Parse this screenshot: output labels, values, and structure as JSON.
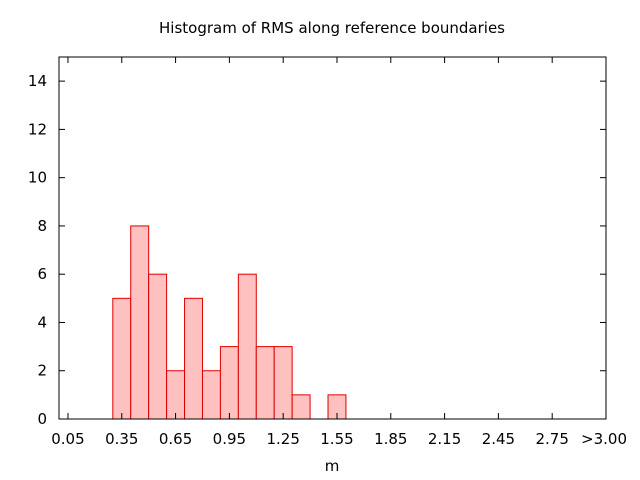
{
  "chart_data": {
    "type": "bar",
    "title": "Histogram of RMS along reference boundaries",
    "xlabel": "m",
    "ylabel": "",
    "ylim": [
      0,
      15
    ],
    "yticks": [
      0,
      2,
      4,
      6,
      8,
      10,
      12,
      14
    ],
    "x_tick_labels": [
      "0.05",
      "0.35",
      "0.65",
      "0.95",
      "1.25",
      "1.55",
      "1.85",
      "2.15",
      "2.45",
      "2.75",
      ">3.00"
    ],
    "bin_width": 0.1,
    "x_range": [
      0.0,
      3.05
    ],
    "bin_centers": [
      0.35,
      0.45,
      0.55,
      0.65,
      0.75,
      0.85,
      0.95,
      1.05,
      1.15,
      1.25,
      1.35,
      1.55
    ],
    "values": [
      5,
      8,
      6,
      2,
      5,
      2,
      3,
      6,
      3,
      3,
      1,
      1
    ],
    "bar_color": "#ffc0c0",
    "bar_edge_color": "#dd0000",
    "grid": false
  }
}
